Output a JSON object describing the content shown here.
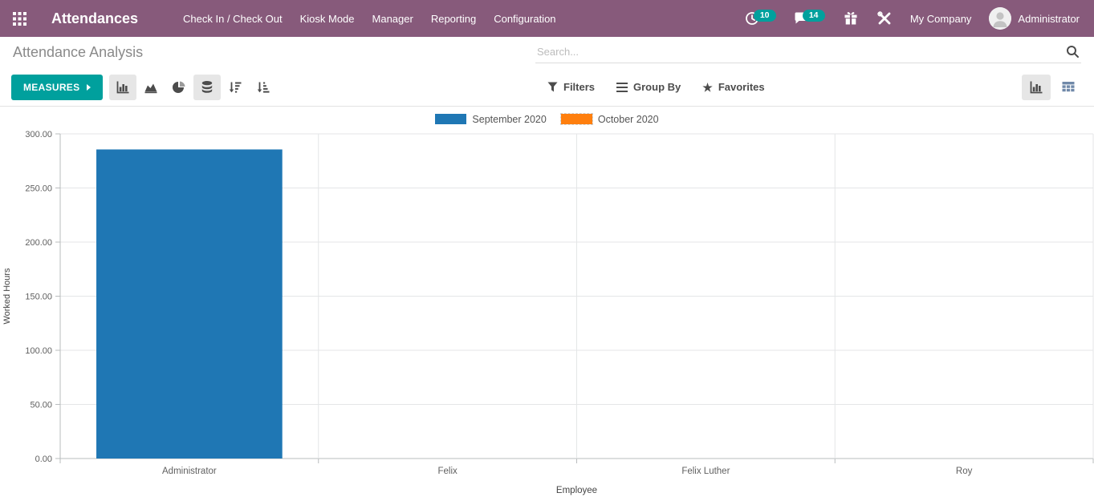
{
  "navbar": {
    "brand": "Attendances",
    "menu_items": [
      "Check In / Check Out",
      "Kiosk Mode",
      "Manager",
      "Reporting",
      "Configuration"
    ],
    "activity_badge": "10",
    "message_badge": "14",
    "company": "My Company",
    "user": "Administrator",
    "colors": {
      "background": "#875A7B",
      "badge": "#00A09D"
    }
  },
  "breadcrumb": {
    "title": "Attendance Analysis"
  },
  "search": {
    "placeholder": "Search..."
  },
  "control_panel": {
    "measures_label": "MEASURES",
    "filters_label": "Filters",
    "group_by_label": "Group By",
    "favorites_label": "Favorites",
    "accent_color": "#00A09D"
  },
  "chart_data": {
    "type": "bar",
    "title": "",
    "categories": [
      "Administrator",
      "Felix",
      "Felix Luther",
      "Roy"
    ],
    "series": [
      {
        "name": "September 2020",
        "color": "#1f77b4",
        "values": [
          285.6,
          0,
          0,
          0
        ]
      },
      {
        "name": "October 2020",
        "color": "#ff7f0e",
        "values": [
          0,
          0,
          0,
          0
        ]
      }
    ],
    "xlabel": "Employee",
    "ylabel": "Worked Hours",
    "ylim": [
      0,
      300
    ],
    "ytick_step": 50,
    "ytick_decimals": 2,
    "grid": true,
    "legend_position": "top"
  }
}
